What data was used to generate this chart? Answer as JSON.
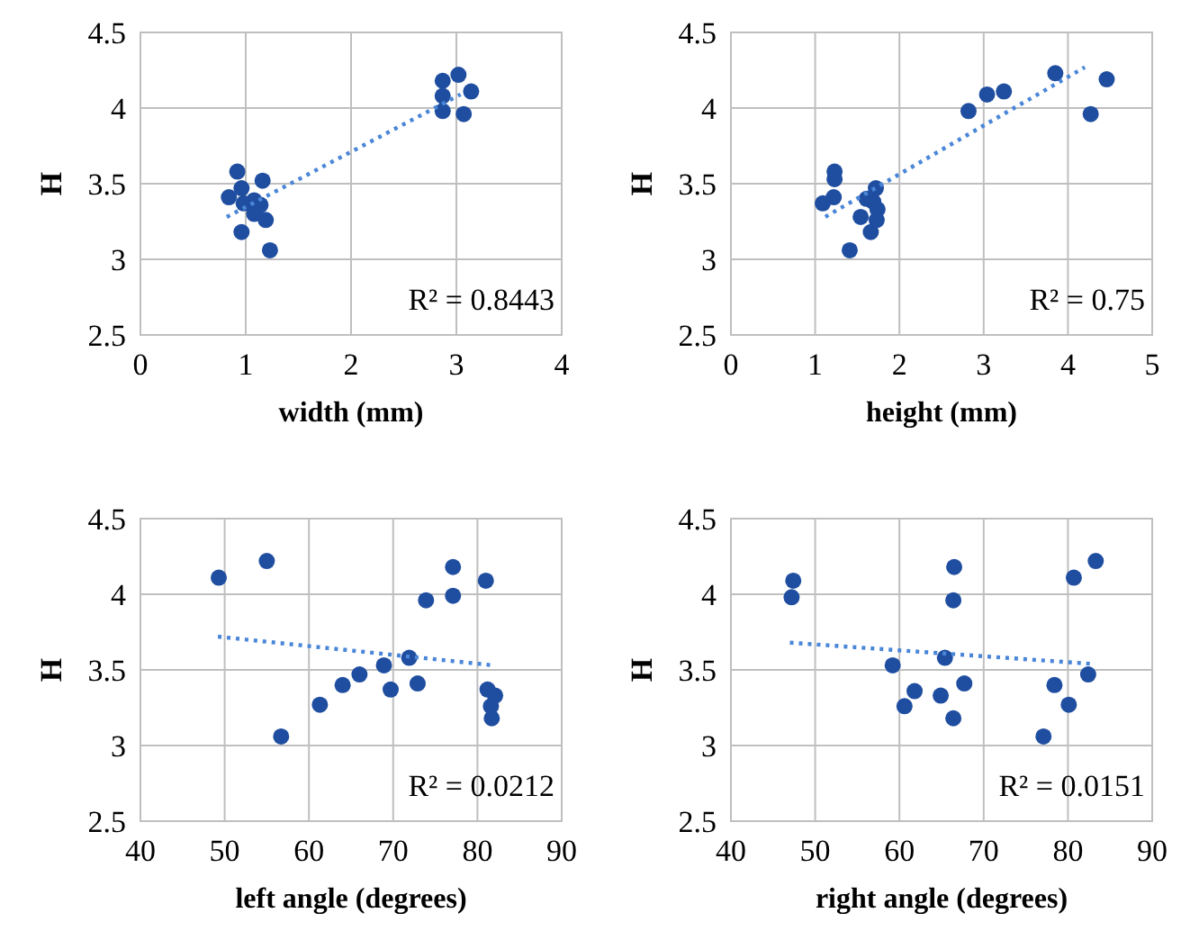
{
  "chart_data": [
    {
      "type": "scatter",
      "xlabel": "width (mm)",
      "ylabel": "H",
      "xlim": [
        0,
        4
      ],
      "xticks": [
        0,
        1,
        2,
        3,
        4
      ],
      "ylim": [
        2.5,
        4.5
      ],
      "yticks": [
        2.5,
        3,
        3.5,
        4,
        4.5
      ],
      "grid": true,
      "annotations": [
        "R² = 0.8443"
      ],
      "series": [
        {
          "color": "#1f4ea0",
          "marker": "circle",
          "x": [
            0.92,
            0.84,
            0.96,
            1.16,
            0.98,
            1.08,
            1.14,
            1.08,
            1.19,
            0.96,
            1.23,
            2.87,
            2.87,
            2.87,
            3.02,
            3.14,
            3.07
          ],
          "values": [
            3.58,
            3.41,
            3.47,
            3.52,
            3.37,
            3.39,
            3.36,
            3.3,
            3.26,
            3.18,
            3.06,
            4.18,
            4.08,
            3.98,
            4.22,
            4.11,
            3.96
          ]
        },
        {
          "type": "line",
          "color": "#4a86d8",
          "line_style": "dotted",
          "x": [
            0.82,
            3.04
          ],
          "values": [
            3.28,
            4.09
          ]
        }
      ]
    },
    {
      "type": "scatter",
      "xlabel": "height (mm)",
      "ylabel": "H",
      "xlim": [
        0,
        5
      ],
      "xticks": [
        0,
        1,
        2,
        3,
        4,
        5
      ],
      "ylim": [
        2.5,
        4.5
      ],
      "yticks": [
        2.5,
        3,
        3.5,
        4,
        4.5
      ],
      "grid": true,
      "annotations": [
        "R² = 0.75"
      ],
      "series": [
        {
          "color": "#1f4ea0",
          "marker": "circle",
          "x": [
            1.09,
            1.22,
            1.23,
            1.23,
            1.41,
            1.54,
            1.61,
            1.66,
            1.72,
            1.69,
            1.74,
            1.73,
            2.82,
            3.04,
            3.24,
            3.85,
            4.27,
            4.46
          ],
          "values": [
            3.37,
            3.41,
            3.58,
            3.53,
            3.06,
            3.28,
            3.4,
            3.18,
            3.47,
            3.38,
            3.33,
            3.26,
            3.98,
            4.09,
            4.11,
            4.23,
            3.96,
            4.19
          ]
        },
        {
          "type": "line",
          "color": "#4a86d8",
          "line_style": "dotted",
          "x": [
            1.12,
            4.2
          ],
          "values": [
            3.28,
            4.27
          ]
        }
      ]
    },
    {
      "type": "scatter",
      "xlabel": "left angle (degrees)",
      "ylabel": "H",
      "xlim": [
        40,
        90
      ],
      "xticks": [
        40,
        50,
        60,
        70,
        80,
        90
      ],
      "ylim": [
        2.5,
        4.5
      ],
      "yticks": [
        2.5,
        3,
        3.5,
        4,
        4.5
      ],
      "grid": true,
      "annotations": [
        "R² = 0.0212"
      ],
      "series": [
        {
          "color": "#1f4ea0",
          "marker": "circle",
          "x": [
            49.3,
            55.0,
            56.7,
            61.3,
            64.0,
            66.0,
            68.9,
            69.7,
            71.9,
            72.9,
            73.9,
            77.1,
            77.1,
            81.0,
            81.2,
            82.1,
            81.6,
            81.7
          ],
          "values": [
            4.11,
            4.22,
            3.06,
            3.27,
            3.4,
            3.47,
            3.53,
            3.37,
            3.58,
            3.41,
            3.96,
            4.18,
            3.99,
            4.09,
            3.37,
            3.33,
            3.26,
            3.18
          ]
        },
        {
          "type": "line",
          "color": "#4a86d8",
          "line_style": "dotted",
          "x": [
            49.2,
            81.9
          ],
          "values": [
            3.72,
            3.53
          ]
        }
      ]
    },
    {
      "type": "scatter",
      "xlabel": "right angle (degrees)",
      "ylabel": "H",
      "xlim": [
        40,
        90
      ],
      "xticks": [
        40,
        50,
        60,
        70,
        80,
        90
      ],
      "ylim": [
        2.5,
        4.5
      ],
      "yticks": [
        2.5,
        3,
        3.5,
        4,
        4.5
      ],
      "grid": true,
      "annotations": [
        "R² = 0.0151"
      ],
      "series": [
        {
          "color": "#1f4ea0",
          "marker": "circle",
          "x": [
            47.4,
            47.2,
            59.2,
            60.6,
            61.8,
            64.9,
            65.4,
            66.5,
            66.4,
            66.4,
            67.7,
            77.1,
            78.4,
            80.1,
            80.7,
            82.4,
            83.3
          ],
          "values": [
            4.09,
            3.98,
            3.53,
            3.26,
            3.36,
            3.33,
            3.58,
            4.18,
            3.96,
            3.18,
            3.41,
            3.06,
            3.4,
            3.27,
            4.11,
            3.47,
            4.22
          ]
        },
        {
          "type": "line",
          "color": "#4a86d8",
          "line_style": "dotted",
          "x": [
            47,
            82.8
          ],
          "values": [
            3.68,
            3.54
          ]
        }
      ]
    }
  ]
}
